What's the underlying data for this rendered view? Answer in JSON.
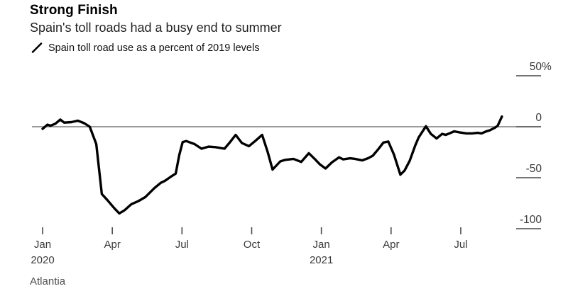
{
  "header": {
    "title": "Strong Finish",
    "subtitle": "Spain's toll roads had a busy end to summer"
  },
  "legend": {
    "label": "Spain toll road use as a percent of 2019 levels"
  },
  "source": {
    "label": "Atlantia"
  },
  "chart_data": {
    "type": "line",
    "title": "Strong Finish",
    "subtitle": "Spain's toll roads had a busy end to summer",
    "series_name": "Spain toll road use as a percent of 2019 levels",
    "source": "Atlantia",
    "x_unit": "months since Jan 2020 (fractional, Jan 2020 = 0)",
    "y_unit": "percent of 2019 levels",
    "ylim": [
      -110,
      55
    ],
    "xlim": [
      0,
      20
    ],
    "grid": "zero-line only",
    "legend_position": "top-left",
    "y_axis_side": "right",
    "x_ticks": [
      {
        "m": 0,
        "label": "Jan",
        "year": "2020"
      },
      {
        "m": 3,
        "label": "Apr"
      },
      {
        "m": 6,
        "label": "Jul"
      },
      {
        "m": 9,
        "label": "Oct"
      },
      {
        "m": 12,
        "label": "Jan",
        "year": "2021"
      },
      {
        "m": 15,
        "label": "Apr"
      },
      {
        "m": 18,
        "label": "Jul"
      }
    ],
    "y_ticks": [
      {
        "value": 50,
        "label": "50",
        "suffix": "%"
      },
      {
        "value": 0,
        "label": "0",
        "suffix": ""
      },
      {
        "value": -50,
        "label": "-50",
        "suffix": ""
      },
      {
        "value": -100,
        "label": "-100",
        "suffix": ""
      }
    ],
    "points": [
      [
        0,
        -2
      ],
      [
        0.21,
        2
      ],
      [
        0.34,
        1
      ],
      [
        0.55,
        3
      ],
      [
        0.76,
        7
      ],
      [
        0.93,
        4
      ],
      [
        1.24,
        4.5
      ],
      [
        1.52,
        6
      ],
      [
        1.79,
        3.5
      ],
      [
        2.03,
        0
      ],
      [
        2.31,
        -17
      ],
      [
        2.55,
        -66
      ],
      [
        2.79,
        -72
      ],
      [
        3.09,
        -80
      ],
      [
        3.3,
        -85
      ],
      [
        3.52,
        -82
      ],
      [
        3.82,
        -76
      ],
      [
        4.12,
        -73
      ],
      [
        4.42,
        -69
      ],
      [
        4.82,
        -60
      ],
      [
        5.09,
        -55
      ],
      [
        5.27,
        -53
      ],
      [
        5.52,
        -49
      ],
      [
        5.73,
        -46
      ],
      [
        5.88,
        -28
      ],
      [
        6.03,
        -15
      ],
      [
        6.18,
        -14
      ],
      [
        6.54,
        -17
      ],
      [
        6.84,
        -21.5
      ],
      [
        7.14,
        -19.5
      ],
      [
        7.44,
        -20
      ],
      [
        7.83,
        -21.5
      ],
      [
        8.07,
        -15
      ],
      [
        8.31,
        -8
      ],
      [
        8.58,
        -16
      ],
      [
        8.88,
        -19
      ],
      [
        9.15,
        -14
      ],
      [
        9.45,
        -8
      ],
      [
        9.69,
        -25
      ],
      [
        9.9,
        -42
      ],
      [
        10.23,
        -34
      ],
      [
        10.44,
        -32.5
      ],
      [
        10.8,
        -31.5
      ],
      [
        11.13,
        -34.5
      ],
      [
        11.46,
        -26
      ],
      [
        11.73,
        -32
      ],
      [
        11.94,
        -37
      ],
      [
        12.18,
        -41
      ],
      [
        12.45,
        -35
      ],
      [
        12.76,
        -30
      ],
      [
        12.94,
        -32
      ],
      [
        13.24,
        -31
      ],
      [
        13.45,
        -31.5
      ],
      [
        13.76,
        -33
      ],
      [
        14,
        -31
      ],
      [
        14.21,
        -28.5
      ],
      [
        14.45,
        -22
      ],
      [
        14.67,
        -15.5
      ],
      [
        14.88,
        -14.5
      ],
      [
        15.12,
        -27
      ],
      [
        15.4,
        -47
      ],
      [
        15.58,
        -43
      ],
      [
        15.8,
        -33.5
      ],
      [
        16.04,
        -18.5
      ],
      [
        16.19,
        -10.5
      ],
      [
        16.5,
        0.5
      ],
      [
        16.71,
        -7
      ],
      [
        16.96,
        -11.5
      ],
      [
        17.2,
        -7
      ],
      [
        17.35,
        -8
      ],
      [
        17.51,
        -6.5
      ],
      [
        17.72,
        -4.5
      ],
      [
        17.94,
        -5.5
      ],
      [
        18.24,
        -6.5
      ],
      [
        18.49,
        -6.5
      ],
      [
        18.73,
        -6
      ],
      [
        18.89,
        -6.5
      ],
      [
        19.1,
        -4.5
      ],
      [
        19.25,
        -3.5
      ],
      [
        19.47,
        -1
      ],
      [
        19.59,
        1
      ],
      [
        19.77,
        10
      ]
    ],
    "colors": {
      "line": "#000000",
      "zero_line": "#9b9b9b",
      "axis_tick": "#757575",
      "axis_tick_dark": "#6b6b6b",
      "x_tick": "#4a4a4a",
      "label": "#3b3b3b"
    }
  }
}
